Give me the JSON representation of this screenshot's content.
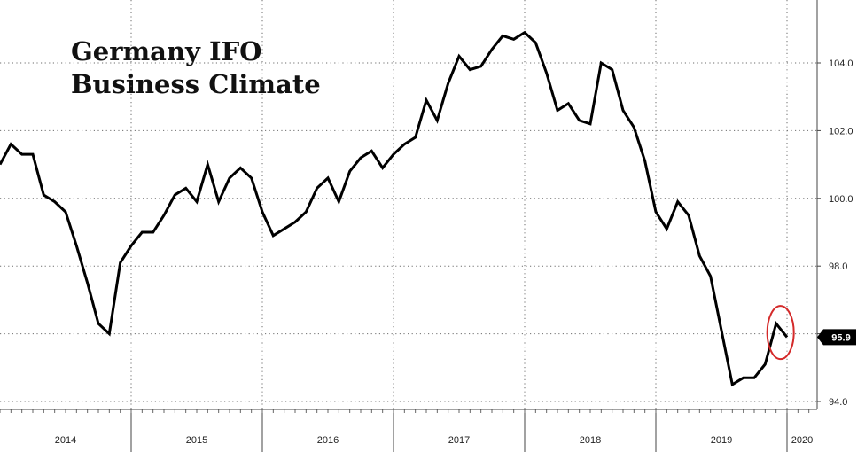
{
  "chart_data": {
    "type": "line",
    "title_lines": [
      "Germany IFO",
      "Business Climate"
    ],
    "x_years": [
      "2014",
      "2015",
      "2016",
      "2017",
      "2018",
      "2019",
      "2020"
    ],
    "y_ticks": [
      "94.0",
      "96.0",
      "98.0",
      "100.0",
      "102.0",
      "104.0"
    ],
    "ylim": [
      93.6,
      106.0
    ],
    "xlim": [
      "2014-01",
      "2020-02"
    ],
    "grid": true,
    "last_value_label": "95.9",
    "highlight": "last-point",
    "line_color": "#000000",
    "highlight_color": "#d42a2a",
    "series": [
      {
        "points": [
          [
            "2014-01",
            101.0
          ],
          [
            "2014-02",
            101.6
          ],
          [
            "2014-03",
            101.3
          ],
          [
            "2014-04",
            101.3
          ],
          [
            "2014-05",
            100.1
          ],
          [
            "2014-06",
            99.9
          ],
          [
            "2014-07",
            99.6
          ],
          [
            "2014-08",
            98.6
          ],
          [
            "2014-09",
            97.5
          ],
          [
            "2014-10",
            96.3
          ],
          [
            "2014-11",
            96.0
          ],
          [
            "2014-12",
            98.1
          ],
          [
            "2015-01",
            98.6
          ],
          [
            "2015-02",
            99.0
          ],
          [
            "2015-03",
            99.0
          ],
          [
            "2015-04",
            99.5
          ],
          [
            "2015-05",
            100.1
          ],
          [
            "2015-06",
            100.3
          ],
          [
            "2015-07",
            99.9
          ],
          [
            "2015-08",
            101.0
          ],
          [
            "2015-09",
            99.9
          ],
          [
            "2015-10",
            100.6
          ],
          [
            "2015-11",
            100.9
          ],
          [
            "2015-12",
            100.6
          ],
          [
            "2016-01",
            99.6
          ],
          [
            "2016-02",
            98.9
          ],
          [
            "2016-03",
            99.1
          ],
          [
            "2016-04",
            99.3
          ],
          [
            "2016-05",
            99.6
          ],
          [
            "2016-06",
            100.3
          ],
          [
            "2016-07",
            100.6
          ],
          [
            "2016-08",
            99.9
          ],
          [
            "2016-09",
            100.8
          ],
          [
            "2016-10",
            101.2
          ],
          [
            "2016-11",
            101.4
          ],
          [
            "2016-12",
            100.9
          ],
          [
            "2017-01",
            101.3
          ],
          [
            "2017-02",
            101.6
          ],
          [
            "2017-03",
            101.8
          ],
          [
            "2017-04",
            102.9
          ],
          [
            "2017-05",
            102.3
          ],
          [
            "2017-06",
            103.4
          ],
          [
            "2017-07",
            104.2
          ],
          [
            "2017-08",
            103.8
          ],
          [
            "2017-09",
            103.9
          ],
          [
            "2017-10",
            104.4
          ],
          [
            "2017-11",
            104.8
          ],
          [
            "2017-12",
            104.7
          ],
          [
            "2018-01",
            104.9
          ],
          [
            "2018-02",
            104.6
          ],
          [
            "2018-03",
            103.7
          ],
          [
            "2018-04",
            102.6
          ],
          [
            "2018-05",
            102.8
          ],
          [
            "2018-06",
            102.3
          ],
          [
            "2018-07",
            102.2
          ],
          [
            "2018-08",
            104.0
          ],
          [
            "2018-09",
            103.8
          ],
          [
            "2018-10",
            102.6
          ],
          [
            "2018-11",
            102.1
          ],
          [
            "2018-12",
            101.1
          ],
          [
            "2019-01",
            99.6
          ],
          [
            "2019-02",
            99.1
          ],
          [
            "2019-03",
            99.9
          ],
          [
            "2019-04",
            99.5
          ],
          [
            "2019-05",
            98.3
          ],
          [
            "2019-06",
            97.7
          ],
          [
            "2019-07",
            96.1
          ],
          [
            "2019-08",
            94.5
          ],
          [
            "2019-09",
            94.7
          ],
          [
            "2019-10",
            94.7
          ],
          [
            "2019-11",
            95.1
          ],
          [
            "2019-12",
            96.3
          ],
          [
            "2020-01",
            95.9
          ]
        ]
      }
    ]
  }
}
